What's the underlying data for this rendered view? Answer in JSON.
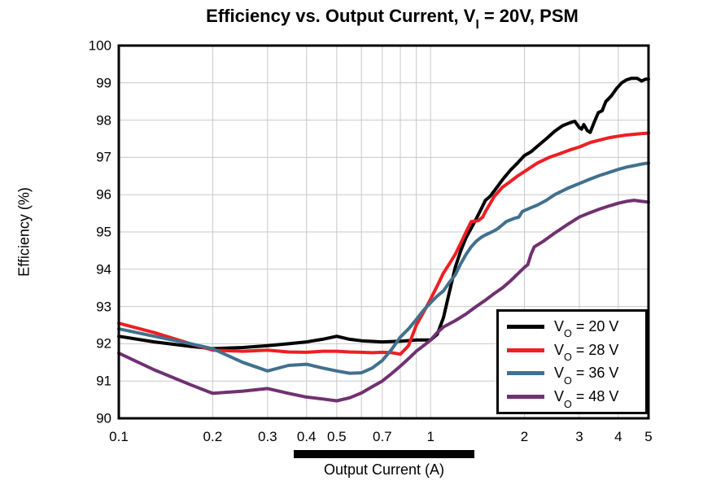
{
  "title": {
    "prefix": "Efficiency vs. Output Current, V",
    "sub": "I",
    "suffix": " = 20V, PSM"
  },
  "axes": {
    "y_label": "Efficiency (%)",
    "x_label": "Output Current (A)",
    "y_ticks": [
      90,
      91,
      92,
      93,
      94,
      95,
      96,
      97,
      98,
      99,
      100
    ],
    "x_ticks": [
      {
        "v": 0.1,
        "label": "0.1"
      },
      {
        "v": 0.2,
        "label": "0.2"
      },
      {
        "v": 0.3,
        "label": "0.3"
      },
      {
        "v": 0.4,
        "label": "0.4"
      },
      {
        "v": 0.5,
        "label": "0.5"
      },
      {
        "v": 0.7,
        "label": "0.7"
      },
      {
        "v": 1,
        "label": "1"
      },
      {
        "v": 2,
        "label": "2"
      },
      {
        "v": 3,
        "label": "3"
      },
      {
        "v": 4,
        "label": "4"
      },
      {
        "v": 5,
        "label": "5"
      }
    ],
    "x_gridlines": [
      0.2,
      0.3,
      0.4,
      0.5,
      0.6,
      0.7,
      0.8,
      0.9,
      1,
      2,
      3,
      4,
      5
    ],
    "y_gridlines": [
      91,
      92,
      93,
      94,
      95,
      96,
      97,
      98,
      99
    ]
  },
  "legend": [
    {
      "prefix": "V",
      "sub": "O",
      "suffix": " = 20 V",
      "color": "#000000"
    },
    {
      "prefix": "V",
      "sub": "O",
      "suffix": " = 28 V",
      "color": "#ed1f24"
    },
    {
      "prefix": "V",
      "sub": "O",
      "suffix": " = 36 V",
      "color": "#42708e"
    },
    {
      "prefix": "V",
      "sub": "O",
      "suffix": " = 48 V",
      "color": "#703170"
    }
  ],
  "colors": {
    "grid": "#c8c8c8",
    "frame": "#000000",
    "highlight_bar": "#000000"
  },
  "chart_data": {
    "type": "line",
    "title": "Efficiency vs. Output Current, VI = 20V, PSM",
    "xlabel": "Output Current (A)",
    "ylabel": "Efficiency (%)",
    "x_scale": "log",
    "xlim": [
      0.1,
      5
    ],
    "ylim": [
      90,
      100
    ],
    "grid": true,
    "legend_position": "lower right",
    "series": [
      {
        "name": "VO = 20 V",
        "color": "#000000",
        "points": [
          [
            0.1,
            92.2
          ],
          [
            0.13,
            92.05
          ],
          [
            0.17,
            91.93
          ],
          [
            0.2,
            91.87
          ],
          [
            0.25,
            91.9
          ],
          [
            0.3,
            91.95
          ],
          [
            0.35,
            92.0
          ],
          [
            0.4,
            92.05
          ],
          [
            0.45,
            92.12
          ],
          [
            0.5,
            92.2
          ],
          [
            0.55,
            92.12
          ],
          [
            0.6,
            92.08
          ],
          [
            0.7,
            92.05
          ],
          [
            0.8,
            92.07
          ],
          [
            0.9,
            92.1
          ],
          [
            1.0,
            92.1
          ],
          [
            1.05,
            92.25
          ],
          [
            1.1,
            92.7
          ],
          [
            1.15,
            93.4
          ],
          [
            1.2,
            94.05
          ],
          [
            1.25,
            94.5
          ],
          [
            1.3,
            94.85
          ],
          [
            1.35,
            95.1
          ],
          [
            1.4,
            95.35
          ],
          [
            1.45,
            95.6
          ],
          [
            1.5,
            95.85
          ],
          [
            1.55,
            95.95
          ],
          [
            1.6,
            96.1
          ],
          [
            1.7,
            96.4
          ],
          [
            1.8,
            96.65
          ],
          [
            1.9,
            96.85
          ],
          [
            2.0,
            97.05
          ],
          [
            2.1,
            97.15
          ],
          [
            2.2,
            97.3
          ],
          [
            2.35,
            97.5
          ],
          [
            2.5,
            97.7
          ],
          [
            2.65,
            97.85
          ],
          [
            2.8,
            97.93
          ],
          [
            2.9,
            97.97
          ],
          [
            3.0,
            97.8
          ],
          [
            3.05,
            97.76
          ],
          [
            3.1,
            97.88
          ],
          [
            3.18,
            97.72
          ],
          [
            3.25,
            97.67
          ],
          [
            3.35,
            97.95
          ],
          [
            3.45,
            98.2
          ],
          [
            3.55,
            98.25
          ],
          [
            3.65,
            98.5
          ],
          [
            3.8,
            98.65
          ],
          [
            3.95,
            98.85
          ],
          [
            4.1,
            99.0
          ],
          [
            4.25,
            99.08
          ],
          [
            4.4,
            99.12
          ],
          [
            4.6,
            99.12
          ],
          [
            4.75,
            99.05
          ],
          [
            4.9,
            99.1
          ],
          [
            5.0,
            99.1
          ]
        ]
      },
      {
        "name": "VO = 28 V",
        "color": "#ed1f24",
        "points": [
          [
            0.1,
            92.55
          ],
          [
            0.13,
            92.3
          ],
          [
            0.17,
            92.0
          ],
          [
            0.2,
            91.83
          ],
          [
            0.25,
            91.8
          ],
          [
            0.3,
            91.83
          ],
          [
            0.35,
            91.78
          ],
          [
            0.4,
            91.77
          ],
          [
            0.45,
            91.8
          ],
          [
            0.5,
            91.8
          ],
          [
            0.55,
            91.78
          ],
          [
            0.6,
            91.77
          ],
          [
            0.65,
            91.76
          ],
          [
            0.7,
            91.77
          ],
          [
            0.75,
            91.76
          ],
          [
            0.8,
            91.72
          ],
          [
            0.85,
            91.95
          ],
          [
            0.9,
            92.5
          ],
          [
            0.95,
            92.85
          ],
          [
            1.0,
            93.2
          ],
          [
            1.05,
            93.55
          ],
          [
            1.1,
            93.9
          ],
          [
            1.15,
            94.15
          ],
          [
            1.2,
            94.4
          ],
          [
            1.25,
            94.7
          ],
          [
            1.3,
            95.0
          ],
          [
            1.35,
            95.28
          ],
          [
            1.42,
            95.3
          ],
          [
            1.47,
            95.4
          ],
          [
            1.5,
            95.55
          ],
          [
            1.55,
            95.75
          ],
          [
            1.6,
            95.95
          ],
          [
            1.7,
            96.2
          ],
          [
            1.8,
            96.35
          ],
          [
            1.9,
            96.5
          ],
          [
            2.0,
            96.62
          ],
          [
            2.2,
            96.85
          ],
          [
            2.4,
            97.0
          ],
          [
            2.6,
            97.1
          ],
          [
            2.8,
            97.2
          ],
          [
            3.0,
            97.28
          ],
          [
            3.25,
            97.4
          ],
          [
            3.5,
            97.47
          ],
          [
            3.75,
            97.53
          ],
          [
            4.0,
            97.57
          ],
          [
            4.25,
            97.6
          ],
          [
            4.5,
            97.62
          ],
          [
            4.75,
            97.64
          ],
          [
            5.0,
            97.65
          ]
        ]
      },
      {
        "name": "VO = 36 V",
        "color": "#42708e",
        "points": [
          [
            0.1,
            92.4
          ],
          [
            0.13,
            92.2
          ],
          [
            0.17,
            92.0
          ],
          [
            0.2,
            91.87
          ],
          [
            0.25,
            91.5
          ],
          [
            0.3,
            91.27
          ],
          [
            0.35,
            91.42
          ],
          [
            0.4,
            91.45
          ],
          [
            0.45,
            91.35
          ],
          [
            0.5,
            91.27
          ],
          [
            0.55,
            91.21
          ],
          [
            0.6,
            91.22
          ],
          [
            0.65,
            91.35
          ],
          [
            0.7,
            91.55
          ],
          [
            0.75,
            91.85
          ],
          [
            0.8,
            92.18
          ],
          [
            0.85,
            92.4
          ],
          [
            0.9,
            92.65
          ],
          [
            0.95,
            92.9
          ],
          [
            1.0,
            93.1
          ],
          [
            1.05,
            93.28
          ],
          [
            1.1,
            93.42
          ],
          [
            1.15,
            93.65
          ],
          [
            1.2,
            93.85
          ],
          [
            1.25,
            94.15
          ],
          [
            1.3,
            94.4
          ],
          [
            1.35,
            94.6
          ],
          [
            1.4,
            94.75
          ],
          [
            1.45,
            94.85
          ],
          [
            1.5,
            94.92
          ],
          [
            1.6,
            95.03
          ],
          [
            1.65,
            95.1
          ],
          [
            1.75,
            95.28
          ],
          [
            1.85,
            95.36
          ],
          [
            1.92,
            95.4
          ],
          [
            1.97,
            95.55
          ],
          [
            2.1,
            95.65
          ],
          [
            2.2,
            95.72
          ],
          [
            2.35,
            95.85
          ],
          [
            2.5,
            96.0
          ],
          [
            2.75,
            96.17
          ],
          [
            3.0,
            96.3
          ],
          [
            3.25,
            96.42
          ],
          [
            3.5,
            96.52
          ],
          [
            3.75,
            96.6
          ],
          [
            4.0,
            96.68
          ],
          [
            4.25,
            96.74
          ],
          [
            4.5,
            96.78
          ],
          [
            4.75,
            96.82
          ],
          [
            5.0,
            96.85
          ]
        ]
      },
      {
        "name": "VO = 48 V",
        "color": "#703170",
        "points": [
          [
            0.1,
            91.75
          ],
          [
            0.13,
            91.3
          ],
          [
            0.17,
            90.9
          ],
          [
            0.2,
            90.67
          ],
          [
            0.25,
            90.73
          ],
          [
            0.3,
            90.8
          ],
          [
            0.35,
            90.67
          ],
          [
            0.4,
            90.57
          ],
          [
            0.45,
            90.52
          ],
          [
            0.5,
            90.47
          ],
          [
            0.55,
            90.55
          ],
          [
            0.6,
            90.68
          ],
          [
            0.65,
            90.85
          ],
          [
            0.7,
            91.0
          ],
          [
            0.75,
            91.2
          ],
          [
            0.8,
            91.4
          ],
          [
            0.85,
            91.6
          ],
          [
            0.9,
            91.8
          ],
          [
            0.95,
            91.95
          ],
          [
            1.0,
            92.1
          ],
          [
            1.05,
            92.3
          ],
          [
            1.1,
            92.45
          ],
          [
            1.2,
            92.62
          ],
          [
            1.3,
            92.8
          ],
          [
            1.4,
            93.0
          ],
          [
            1.5,
            93.17
          ],
          [
            1.6,
            93.35
          ],
          [
            1.7,
            93.5
          ],
          [
            1.8,
            93.68
          ],
          [
            1.9,
            93.87
          ],
          [
            2.0,
            94.05
          ],
          [
            2.05,
            94.12
          ],
          [
            2.1,
            94.4
          ],
          [
            2.15,
            94.6
          ],
          [
            2.3,
            94.75
          ],
          [
            2.5,
            94.97
          ],
          [
            2.75,
            95.2
          ],
          [
            3.0,
            95.4
          ],
          [
            3.25,
            95.52
          ],
          [
            3.5,
            95.62
          ],
          [
            3.75,
            95.7
          ],
          [
            4.0,
            95.77
          ],
          [
            4.25,
            95.82
          ],
          [
            4.5,
            95.85
          ],
          [
            4.75,
            95.82
          ],
          [
            5.0,
            95.8
          ]
        ]
      }
    ]
  }
}
